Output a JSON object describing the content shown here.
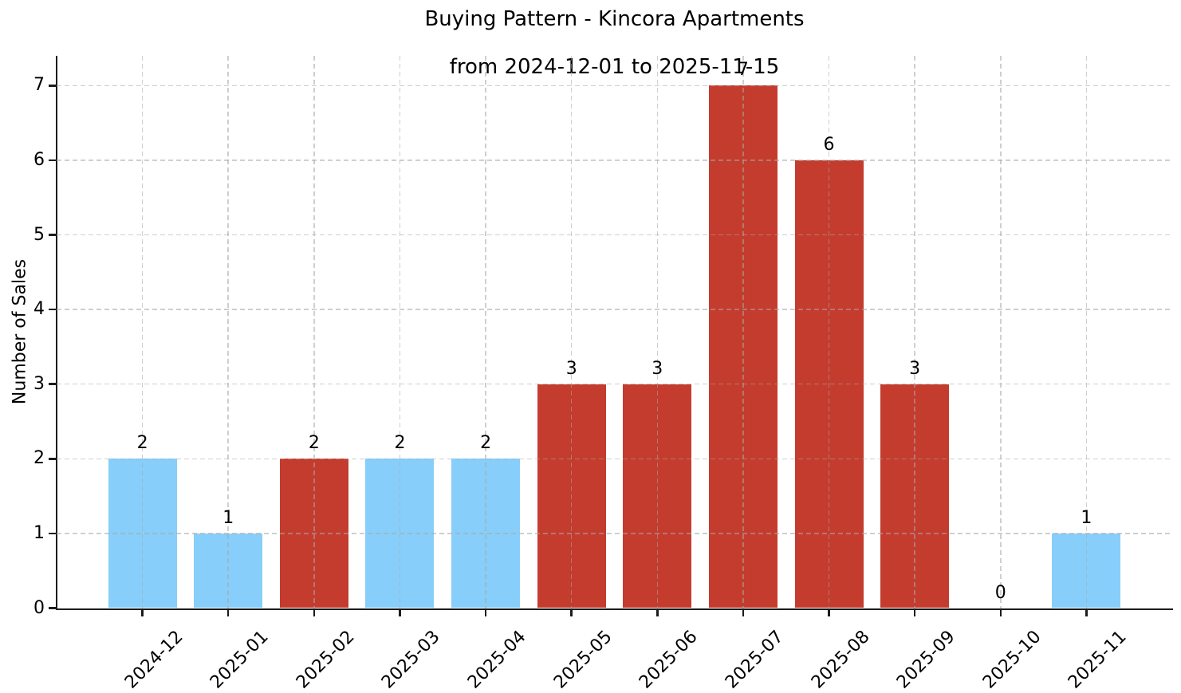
{
  "figure": {
    "title_line1": "Buying Pattern - Kincora Apartments",
    "title_line2": "from 2024-12-01 to 2025-11-15"
  },
  "chart_data": {
    "type": "bar",
    "title": "Buying Pattern - Kincora Apartments\nfrom 2024-12-01 to 2025-11-15",
    "xlabel": "",
    "ylabel": "Number of Sales",
    "categories": [
      "2024-12",
      "2025-01",
      "2025-02",
      "2025-03",
      "2025-04",
      "2025-05",
      "2025-06",
      "2025-07",
      "2025-08",
      "2025-09",
      "2025-10",
      "2025-11"
    ],
    "values": [
      2,
      1,
      2,
      2,
      2,
      3,
      3,
      7,
      6,
      3,
      0,
      1
    ],
    "bar_colors": [
      "#87cefa",
      "#87cefa",
      "#c43c2e",
      "#87cefa",
      "#87cefa",
      "#c43c2e",
      "#c43c2e",
      "#c43c2e",
      "#c43c2e",
      "#c43c2e",
      "#87cefa",
      "#87cefa"
    ],
    "yticks": [
      0,
      1,
      2,
      3,
      4,
      5,
      6,
      7
    ],
    "ylim": [
      0,
      7.4
    ],
    "grid": "both, dashed",
    "legend": "none",
    "palette": {
      "blue": "#87cefa",
      "red": "#c43c2e",
      "axis": "#1c1c1c",
      "grid": "#d9d9d9",
      "text": "#000000",
      "background": "#ffffff"
    }
  }
}
